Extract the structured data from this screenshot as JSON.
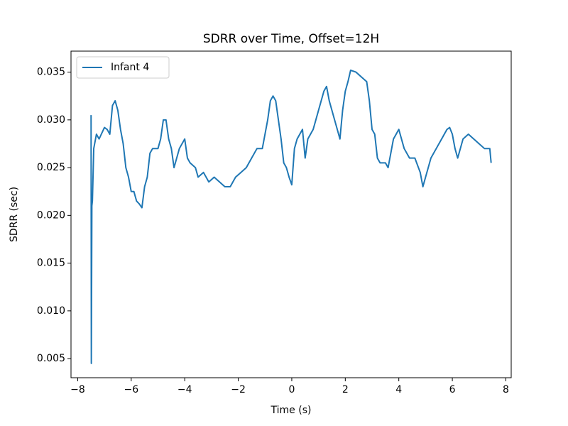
{
  "chart_data": {
    "type": "line",
    "title": "SDRR over Time, Offset=12H",
    "xlabel": "Time (s)",
    "ylabel": "SDRR (sec)",
    "x": [
      -7.5,
      -7.49,
      -7.47,
      -7.45,
      -7.4,
      -7.3,
      -7.2,
      -7.0,
      -6.9,
      -6.8,
      -6.7,
      -6.6,
      -6.5,
      -6.4,
      -6.3,
      -6.2,
      -6.1,
      -6.0,
      -5.9,
      -5.8,
      -5.7,
      -5.6,
      -5.5,
      -5.4,
      -5.3,
      -5.2,
      -5.0,
      -4.9,
      -4.8,
      -4.7,
      -4.6,
      -4.5,
      -4.4,
      -4.3,
      -4.2,
      -4.0,
      -3.9,
      -3.8,
      -3.6,
      -3.5,
      -3.3,
      -3.1,
      -2.9,
      -2.7,
      -2.5,
      -2.3,
      -2.1,
      -1.9,
      -1.7,
      -1.5,
      -1.3,
      -1.1,
      -0.9,
      -0.8,
      -0.7,
      -0.6,
      -0.5,
      -0.4,
      -0.3,
      -0.2,
      -0.1,
      0.0,
      0.1,
      0.2,
      0.4,
      0.5,
      0.6,
      0.8,
      0.9,
      1.0,
      1.2,
      1.3,
      1.4,
      1.5,
      1.6,
      1.7,
      1.8,
      1.9,
      2.0,
      2.1,
      2.2,
      2.4,
      2.6,
      2.8,
      2.9,
      3.0,
      3.1,
      3.2,
      3.3,
      3.5,
      3.6,
      3.8,
      4.0,
      4.2,
      4.4,
      4.6,
      4.8,
      4.9,
      5.0,
      5.2,
      5.4,
      5.6,
      5.8,
      5.9,
      6.0,
      6.1,
      6.2,
      6.4,
      6.6,
      6.8,
      7.0,
      7.2,
      7.4,
      7.45
    ],
    "series": [
      {
        "name": "Infant 4",
        "color": "#1f77b4",
        "values": [
          0.0305,
          0.0045,
          0.021,
          0.0215,
          0.027,
          0.0285,
          0.028,
          0.0292,
          0.029,
          0.0285,
          0.0315,
          0.032,
          0.031,
          0.029,
          0.0275,
          0.025,
          0.024,
          0.0225,
          0.0225,
          0.0215,
          0.0212,
          0.0208,
          0.023,
          0.024,
          0.0265,
          0.027,
          0.027,
          0.028,
          0.03,
          0.03,
          0.028,
          0.027,
          0.025,
          0.026,
          0.027,
          0.028,
          0.026,
          0.0255,
          0.025,
          0.024,
          0.0245,
          0.0235,
          0.024,
          0.0235,
          0.023,
          0.023,
          0.024,
          0.0245,
          0.025,
          0.026,
          0.027,
          0.027,
          0.03,
          0.032,
          0.0325,
          0.032,
          0.03,
          0.028,
          0.0255,
          0.025,
          0.024,
          0.0232,
          0.027,
          0.028,
          0.029,
          0.026,
          0.028,
          0.029,
          0.03,
          0.031,
          0.033,
          0.0335,
          0.032,
          0.031,
          0.03,
          0.029,
          0.028,
          0.031,
          0.033,
          0.034,
          0.0352,
          0.035,
          0.0345,
          0.034,
          0.032,
          0.029,
          0.0285,
          0.026,
          0.0255,
          0.0255,
          0.025,
          0.028,
          0.029,
          0.027,
          0.026,
          0.026,
          0.0245,
          0.023,
          0.024,
          0.026,
          0.027,
          0.028,
          0.029,
          0.0292,
          0.0285,
          0.027,
          0.026,
          0.028,
          0.0285,
          0.028,
          0.0275,
          0.027,
          0.027,
          0.0255
        ]
      }
    ],
    "xlim": [
      -8.25,
      8.2
    ],
    "ylim": [
      0.003,
      0.0372
    ],
    "xticks": [
      {
        "value": -8,
        "label": "−8"
      },
      {
        "value": -6,
        "label": "−6"
      },
      {
        "value": -4,
        "label": "−4"
      },
      {
        "value": -2,
        "label": "−2"
      },
      0,
      2,
      4,
      6,
      8
    ],
    "yticks": [
      {
        "value": 0.005,
        "label": "0.005"
      },
      {
        "value": 0.01,
        "label": "0.010"
      },
      {
        "value": 0.015,
        "label": "0.015"
      },
      {
        "value": 0.02,
        "label": "0.020"
      },
      {
        "value": 0.025,
        "label": "0.025"
      },
      {
        "value": 0.03,
        "label": "0.030"
      },
      {
        "value": 0.035,
        "label": "0.035"
      }
    ],
    "legend": "upper left"
  }
}
